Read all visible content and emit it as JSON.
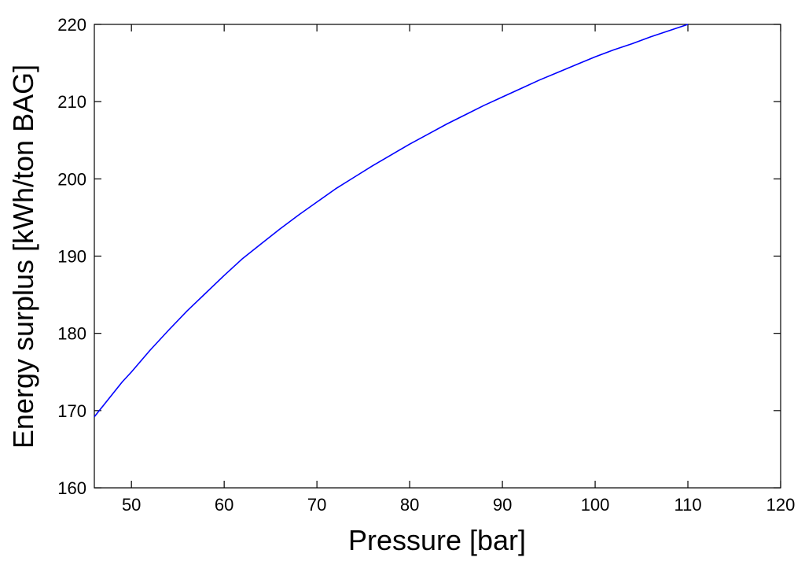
{
  "chart_data": {
    "type": "line",
    "title": "",
    "xlabel": "Pressure [bar]",
    "ylabel": "Energy surplus [kWh/ton BAG]",
    "xlim": [
      46,
      120
    ],
    "ylim": [
      160,
      220
    ],
    "xticks": [
      50,
      60,
      70,
      80,
      90,
      100,
      110,
      120
    ],
    "yticks": [
      160,
      170,
      180,
      190,
      200,
      210,
      220
    ],
    "grid": false,
    "legend": "none",
    "series": [
      {
        "color": "#0000ff",
        "x": [
          46,
          47,
          48,
          49,
          50,
          52,
          54,
          56,
          58,
          60,
          62,
          64,
          66,
          68,
          70,
          72,
          74,
          76,
          78,
          80,
          82,
          84,
          86,
          88,
          90,
          92,
          94,
          96,
          98,
          100,
          102,
          104,
          106,
          108,
          110
        ],
        "y": [
          169.2,
          170.7,
          172.2,
          173.7,
          175.0,
          177.8,
          180.4,
          182.9,
          185.2,
          187.5,
          189.7,
          191.6,
          193.5,
          195.3,
          197.0,
          198.7,
          200.2,
          201.7,
          203.1,
          204.5,
          205.8,
          207.1,
          208.3,
          209.5,
          210.6,
          211.7,
          212.8,
          213.8,
          214.8,
          215.8,
          216.7,
          217.5,
          218.4,
          219.2,
          220.0
        ]
      }
    ]
  }
}
